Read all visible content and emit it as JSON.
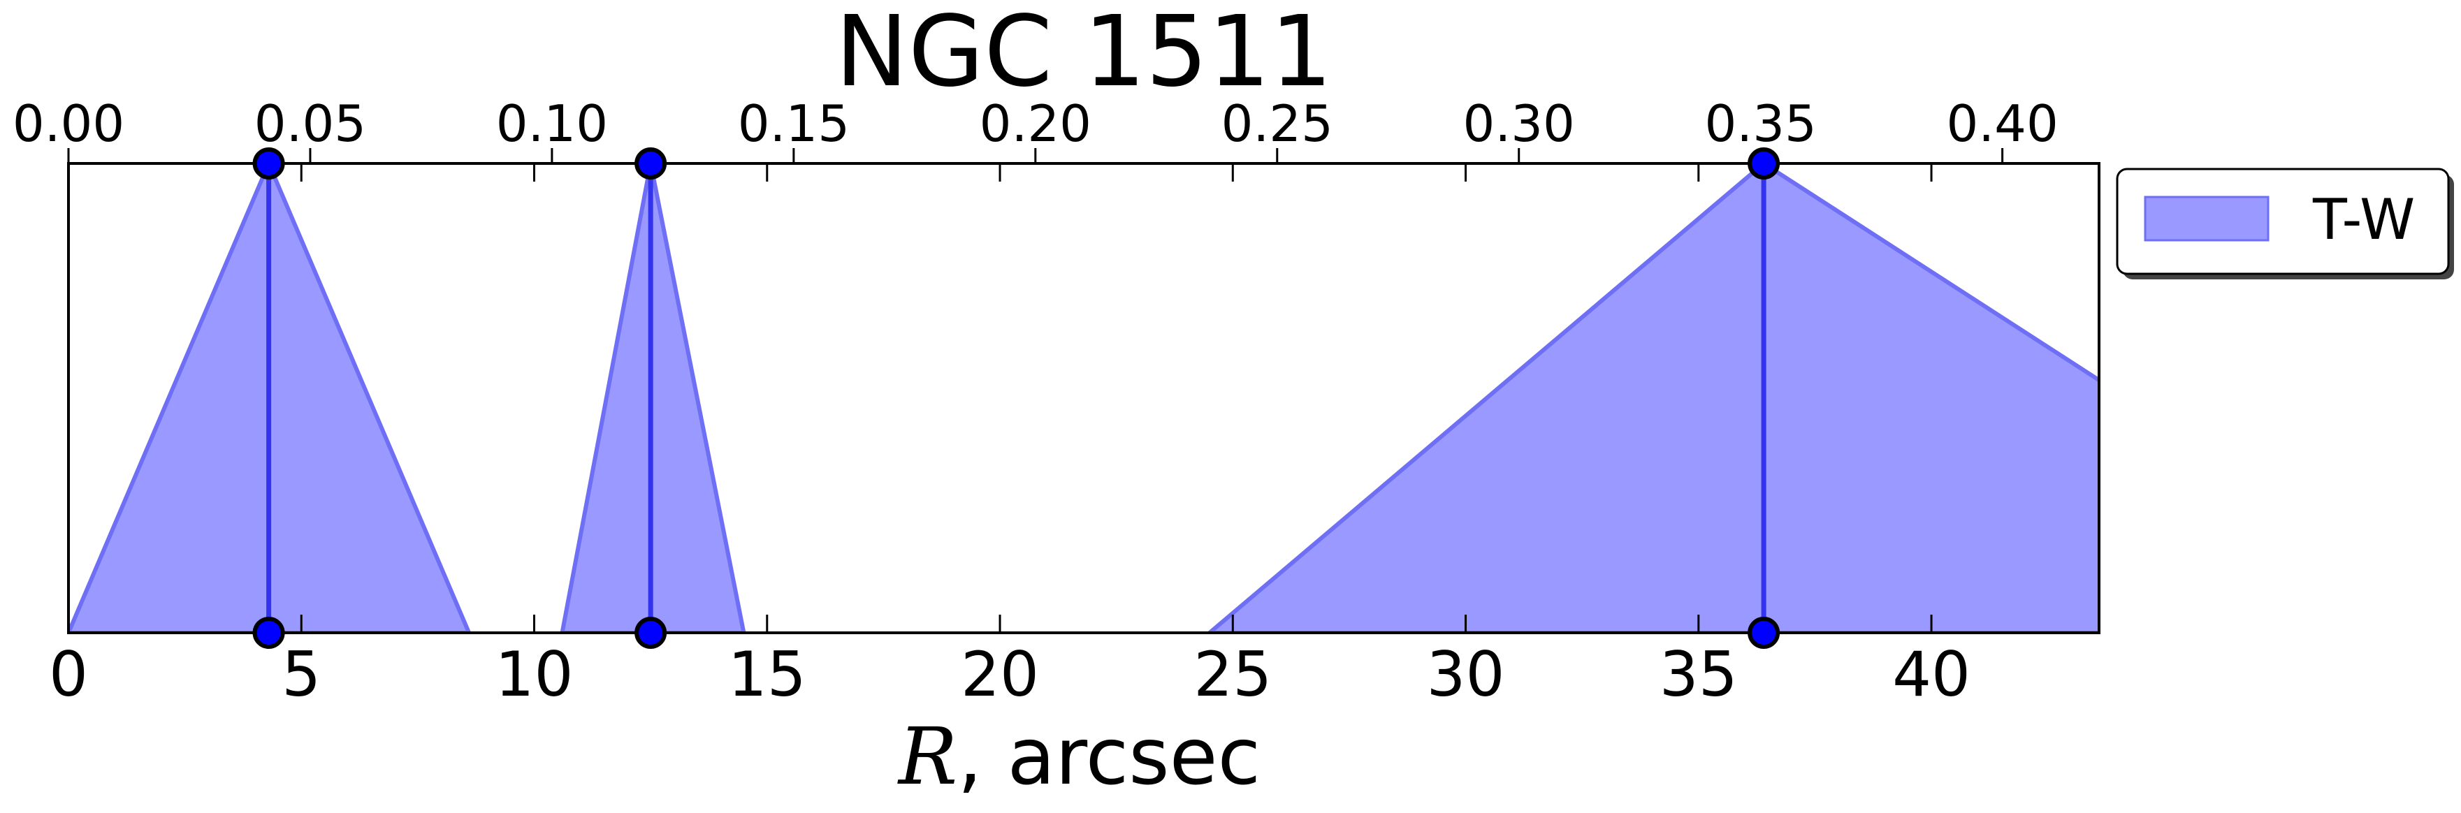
{
  "chart_data": {
    "type": "area",
    "title": "NGC 1511",
    "xlabel_var": "R",
    "xlabel_rest": ", arcsec",
    "xlim": [
      0,
      43.6
    ],
    "ylim": [
      0,
      1
    ],
    "x_ticks": [
      0,
      5,
      10,
      15,
      20,
      25,
      30,
      35,
      40
    ],
    "x_tick_labels": [
      "0",
      "5",
      "10",
      "15",
      "20",
      "25",
      "30",
      "35",
      "40"
    ],
    "top_axis": {
      "xlim": [
        0,
        0.42
      ],
      "ticks": [
        0.0,
        0.05,
        0.1,
        0.15,
        0.2,
        0.25,
        0.3,
        0.35,
        0.4
      ],
      "tick_labels": [
        "0.00",
        "0.05",
        "0.10",
        "0.15",
        "0.20",
        "0.25",
        "0.30",
        "0.35",
        "0.40"
      ]
    },
    "legend": {
      "position": "outside-right-top",
      "entries": [
        "T-W"
      ]
    },
    "colors": {
      "fill": "#9999ff",
      "edge": "#6f6ff5",
      "line": "#3333ee",
      "marker": "#0000ff"
    },
    "series": [
      {
        "name": "T-W",
        "peaks": [
          {
            "x": 4.3,
            "left": 0.0,
            "right": 8.6
          },
          {
            "x": 12.5,
            "left": 10.6,
            "right": 14.5
          },
          {
            "x": 36.4,
            "left": 24.5,
            "right": 52.0
          }
        ]
      }
    ]
  }
}
